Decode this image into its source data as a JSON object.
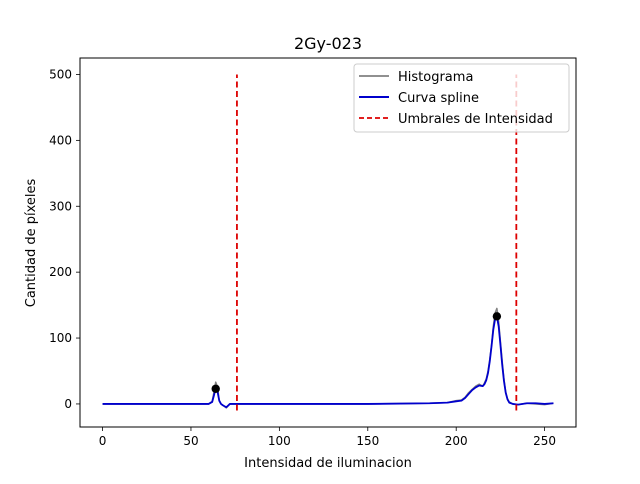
{
  "chart_data": {
    "type": "line",
    "title": "2Gy-023",
    "xlabel": "Intensidad de iluminacion",
    "ylabel": "Cantidad de píxeles",
    "xlim": [
      -12.75,
      267.75
    ],
    "ylim": [
      -35,
      525
    ],
    "xticks": [
      0,
      50,
      100,
      150,
      200,
      250
    ],
    "yticks": [
      0,
      100,
      200,
      300,
      400,
      500
    ],
    "grid": false,
    "legend_position": "top-right",
    "legend": [
      {
        "label": "Histograma",
        "color": "#808080",
        "style": "solid"
      },
      {
        "label": "Curva spline",
        "color": "#0000cc",
        "style": "solid"
      },
      {
        "label": "Umbrales de Intensidad",
        "color": "#dd0000",
        "style": "dashed"
      }
    ],
    "series": [
      {
        "name": "Histograma",
        "color": "#808080",
        "x": [
          0,
          20,
          40,
          55,
          60,
          62,
          63,
          64,
          65,
          66,
          67,
          68,
          70,
          72,
          75,
          80,
          100,
          150,
          185,
          195,
          200,
          203,
          205,
          207,
          209,
          211,
          213,
          215,
          216,
          217,
          218,
          219,
          220,
          221,
          222,
          223,
          224,
          225,
          226,
          227,
          228,
          229,
          230,
          232,
          235,
          240,
          245,
          250,
          255
        ],
        "y": [
          0,
          0,
          0,
          0,
          0,
          4,
          18,
          33,
          26,
          5,
          0,
          -2,
          -6,
          0,
          0,
          0,
          0,
          0,
          1,
          2,
          5,
          6,
          10,
          17,
          22,
          27,
          30,
          27,
          32,
          38,
          50,
          68,
          90,
          118,
          138,
          145,
          125,
          95,
          65,
          38,
          18,
          8,
          3,
          0,
          -1,
          1,
          0,
          -1,
          1
        ]
      },
      {
        "name": "Curva spline",
        "color": "#0000cc",
        "x": [
          0,
          20,
          40,
          55,
          60,
          62,
          63,
          64,
          65,
          66,
          67,
          68,
          70,
          72,
          75,
          80,
          100,
          150,
          185,
          195,
          200,
          203,
          205,
          207,
          209,
          211,
          213,
          215,
          216,
          217,
          218,
          219,
          220,
          221,
          222,
          223,
          224,
          225,
          226,
          227,
          228,
          229,
          230,
          232,
          235,
          240,
          245,
          250,
          255
        ],
        "y": [
          0,
          0,
          0,
          0,
          0,
          3,
          13,
          24,
          19,
          5,
          0,
          -2,
          -5,
          0,
          0,
          0,
          0,
          0,
          1,
          2,
          4,
          5,
          9,
          15,
          21,
          25,
          28,
          27,
          30,
          36,
          47,
          65,
          88,
          113,
          129,
          133,
          118,
          90,
          60,
          35,
          17,
          7,
          2,
          0,
          -1,
          1,
          1,
          0,
          1
        ]
      }
    ],
    "thresholds": {
      "name": "Umbrales de Intensidad",
      "color": "#dd0000",
      "x": [
        76,
        234
      ],
      "ymin": -10,
      "ymax": 500
    },
    "peaks": {
      "color": "#000000",
      "points": [
        {
          "x": 64,
          "y": 23
        },
        {
          "x": 223,
          "y": 133
        }
      ]
    }
  }
}
